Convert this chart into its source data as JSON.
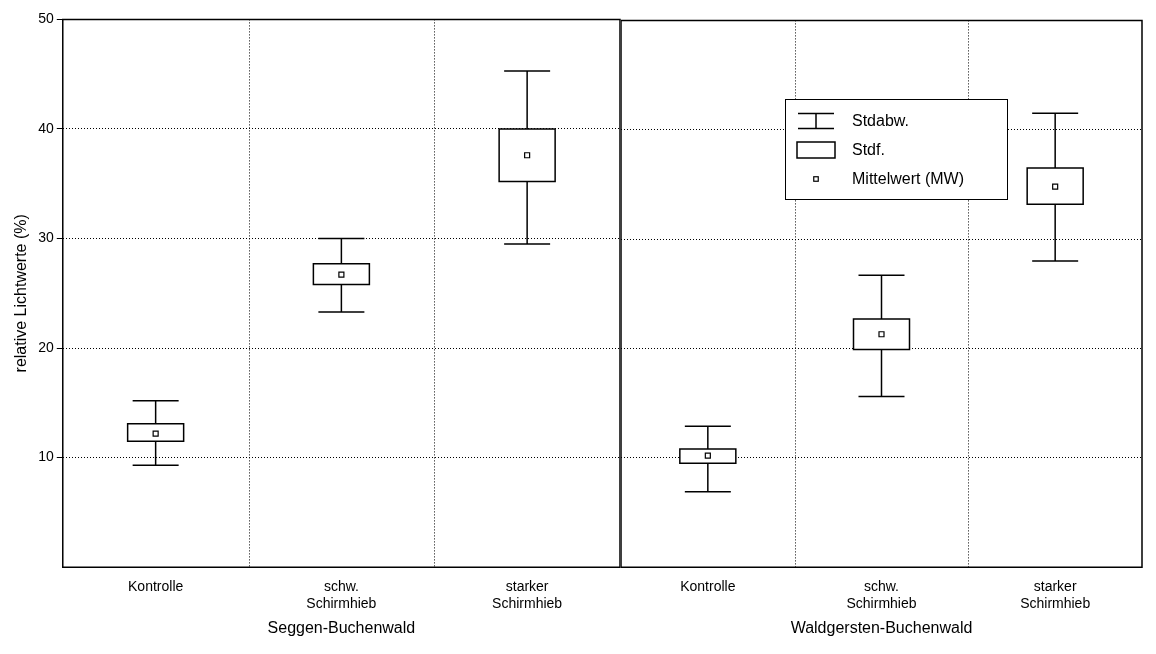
{
  "chart_data": [
    {
      "type": "box",
      "ylabel": "relative Lichtwerte (%)",
      "xlabel": "Seggen-Buchenwald",
      "categories": [
        "Kontrolle",
        "schw. Schirmhieb",
        "starker Schirmhieb"
      ],
      "boxes": [
        {
          "low": 9.3,
          "q1": 11.5,
          "median": 12.2,
          "q3": 13.1,
          "high": 15.2
        },
        {
          "low": 23.3,
          "q1": 25.8,
          "median": 26.7,
          "q3": 27.7,
          "high": 30.0
        },
        {
          "low": 29.5,
          "q1": 35.2,
          "median": 37.6,
          "q3": 40.0,
          "high": 45.3
        }
      ],
      "ylim": [
        0,
        50
      ],
      "yticks": [
        10,
        20,
        30,
        40,
        50
      ],
      "grid": true
    },
    {
      "type": "box",
      "xlabel": "Waldgersten-Buchenwald",
      "categories": [
        "Kontrolle",
        "schw. Schirmhieb",
        "starker Schirmhieb"
      ],
      "boxes": [
        {
          "low": 6.9,
          "q1": 9.5,
          "median": 10.2,
          "q3": 10.8,
          "high": 12.9
        },
        {
          "low": 15.6,
          "q1": 19.9,
          "median": 21.3,
          "q3": 22.7,
          "high": 26.7
        },
        {
          "low": 28.0,
          "q1": 33.2,
          "median": 34.8,
          "q3": 36.5,
          "high": 41.5
        }
      ],
      "ylim": [
        0,
        50
      ],
      "yticks": [
        10,
        20,
        30,
        40,
        50
      ],
      "grid": true,
      "tick_labels": "x",
      "annotations": [
        "Stdabw.",
        "Stdf.",
        "Mittelwert (MW)"
      ]
    }
  ]
}
